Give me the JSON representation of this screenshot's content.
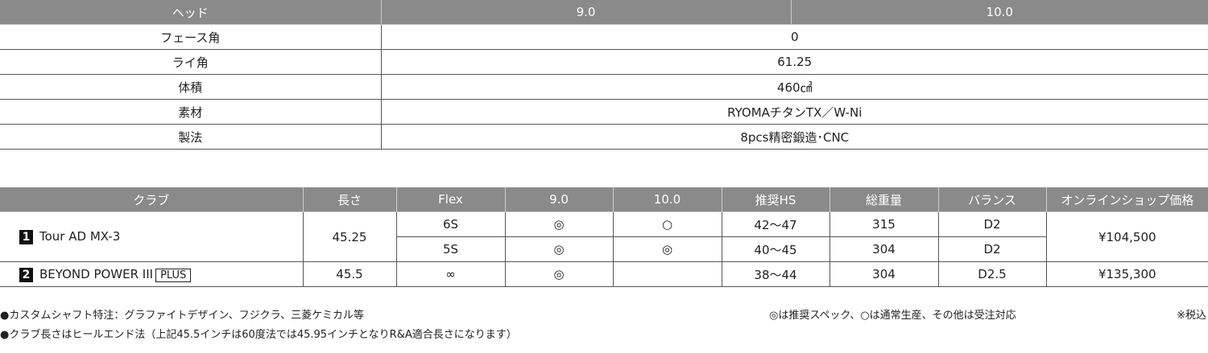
{
  "spec": {
    "header": [
      "ヘッド",
      "9.0",
      "10.0"
    ],
    "rows": [
      {
        "label": "フェース角",
        "value": "0"
      },
      {
        "label": "ライ角",
        "value": "61.25"
      },
      {
        "label": "体積",
        "value": "460㎤"
      },
      {
        "label": "素材",
        "value": "RYOMAチタンTX／W-Ni"
      },
      {
        "label": "製法",
        "value": "8pcs精密鍛造･CNC"
      }
    ]
  },
  "shafts": {
    "header": [
      "クラブ",
      "長さ",
      "Flex",
      "9.0",
      "10.0",
      "推奨HS",
      "総重量",
      "バランス",
      "オンラインショップ価格"
    ],
    "items": [
      {
        "num": "1",
        "name": "Tour AD MX-3",
        "plus": "",
        "length": "45.25",
        "price": "¥104,500",
        "variants": [
          {
            "flex": "6S",
            "h9": "◎",
            "h10": "○",
            "hs": "42〜47",
            "weight": "315",
            "balance": "D2"
          },
          {
            "flex": "5S",
            "h9": "◎",
            "h10": "◎",
            "hs": "40〜45",
            "weight": "304",
            "balance": "D2"
          }
        ]
      },
      {
        "num": "2",
        "name": "BEYOND POWER III",
        "plus": "PLUS",
        "length": "45.5",
        "price": "¥135,300",
        "variants": [
          {
            "flex": "∞",
            "h9": "◎",
            "h10": "",
            "hs": "38〜44",
            "weight": "304",
            "balance": "D2.5"
          }
        ]
      }
    ]
  },
  "notes": {
    "custom": "●カスタムシャフト特注：グラファイトデザイン、フジクラ、三菱ケミカル等",
    "length": "●クラブ長さはヒールエンド法（上記45.5インチは60度法では45.95インチとなりR&A適合長さになります）",
    "legend": "◎は推奨スペック、○は通常生産、その他は受注対応",
    "tax": "※税込"
  }
}
